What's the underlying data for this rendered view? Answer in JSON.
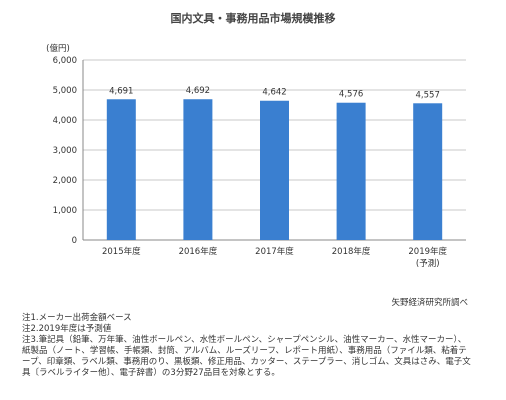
{
  "chart_data": {
    "type": "bar",
    "title": "国内文具・事務用品市場規模推移",
    "ylabel": "(億円)",
    "ylim": [
      0,
      6000
    ],
    "yticks": [
      "0",
      "1,000",
      "2,000",
      "3,000",
      "4,000",
      "5,000",
      "6,000"
    ],
    "ytick_values": [
      0,
      1000,
      2000,
      3000,
      4000,
      5000,
      6000
    ],
    "categories": [
      "2015年度",
      "2016年度",
      "2017年度",
      "2018年度",
      "2019年度"
    ],
    "category_sublabels": [
      "",
      "",
      "",
      "",
      "(予測)"
    ],
    "values": [
      4691,
      4692,
      4642,
      4576,
      4557
    ],
    "value_labels": [
      "4,691",
      "4,692",
      "4,642",
      "4,576",
      "4,557"
    ],
    "grid": true,
    "bar_color": "#3a7fd0",
    "grid_color": "#c8c8c8"
  },
  "source": "矢野経済研究所調べ",
  "notes": [
    "注1.メーカー出荷金額ベース",
    "注2.2019年度は予測値",
    "注3.筆記具（鉛筆、万年筆、油性ボールペン、水性ボールペン、シャープペンシル、油性マーカー、水性マーカー）、紙製品（ノート、学習帳、手帳類、封筒、アルバム、ルーズリーフ、レポート用紙）、事務用品（ファイル類、粘着テープ、印章類、ラベル類、事務用のり、黒板類、修正用品、カッター、ステープラー、消しゴム、文具はさみ、電子文具〔ラベルライター他〕、電子辞書）の3分野27品目を対象とする。"
  ]
}
